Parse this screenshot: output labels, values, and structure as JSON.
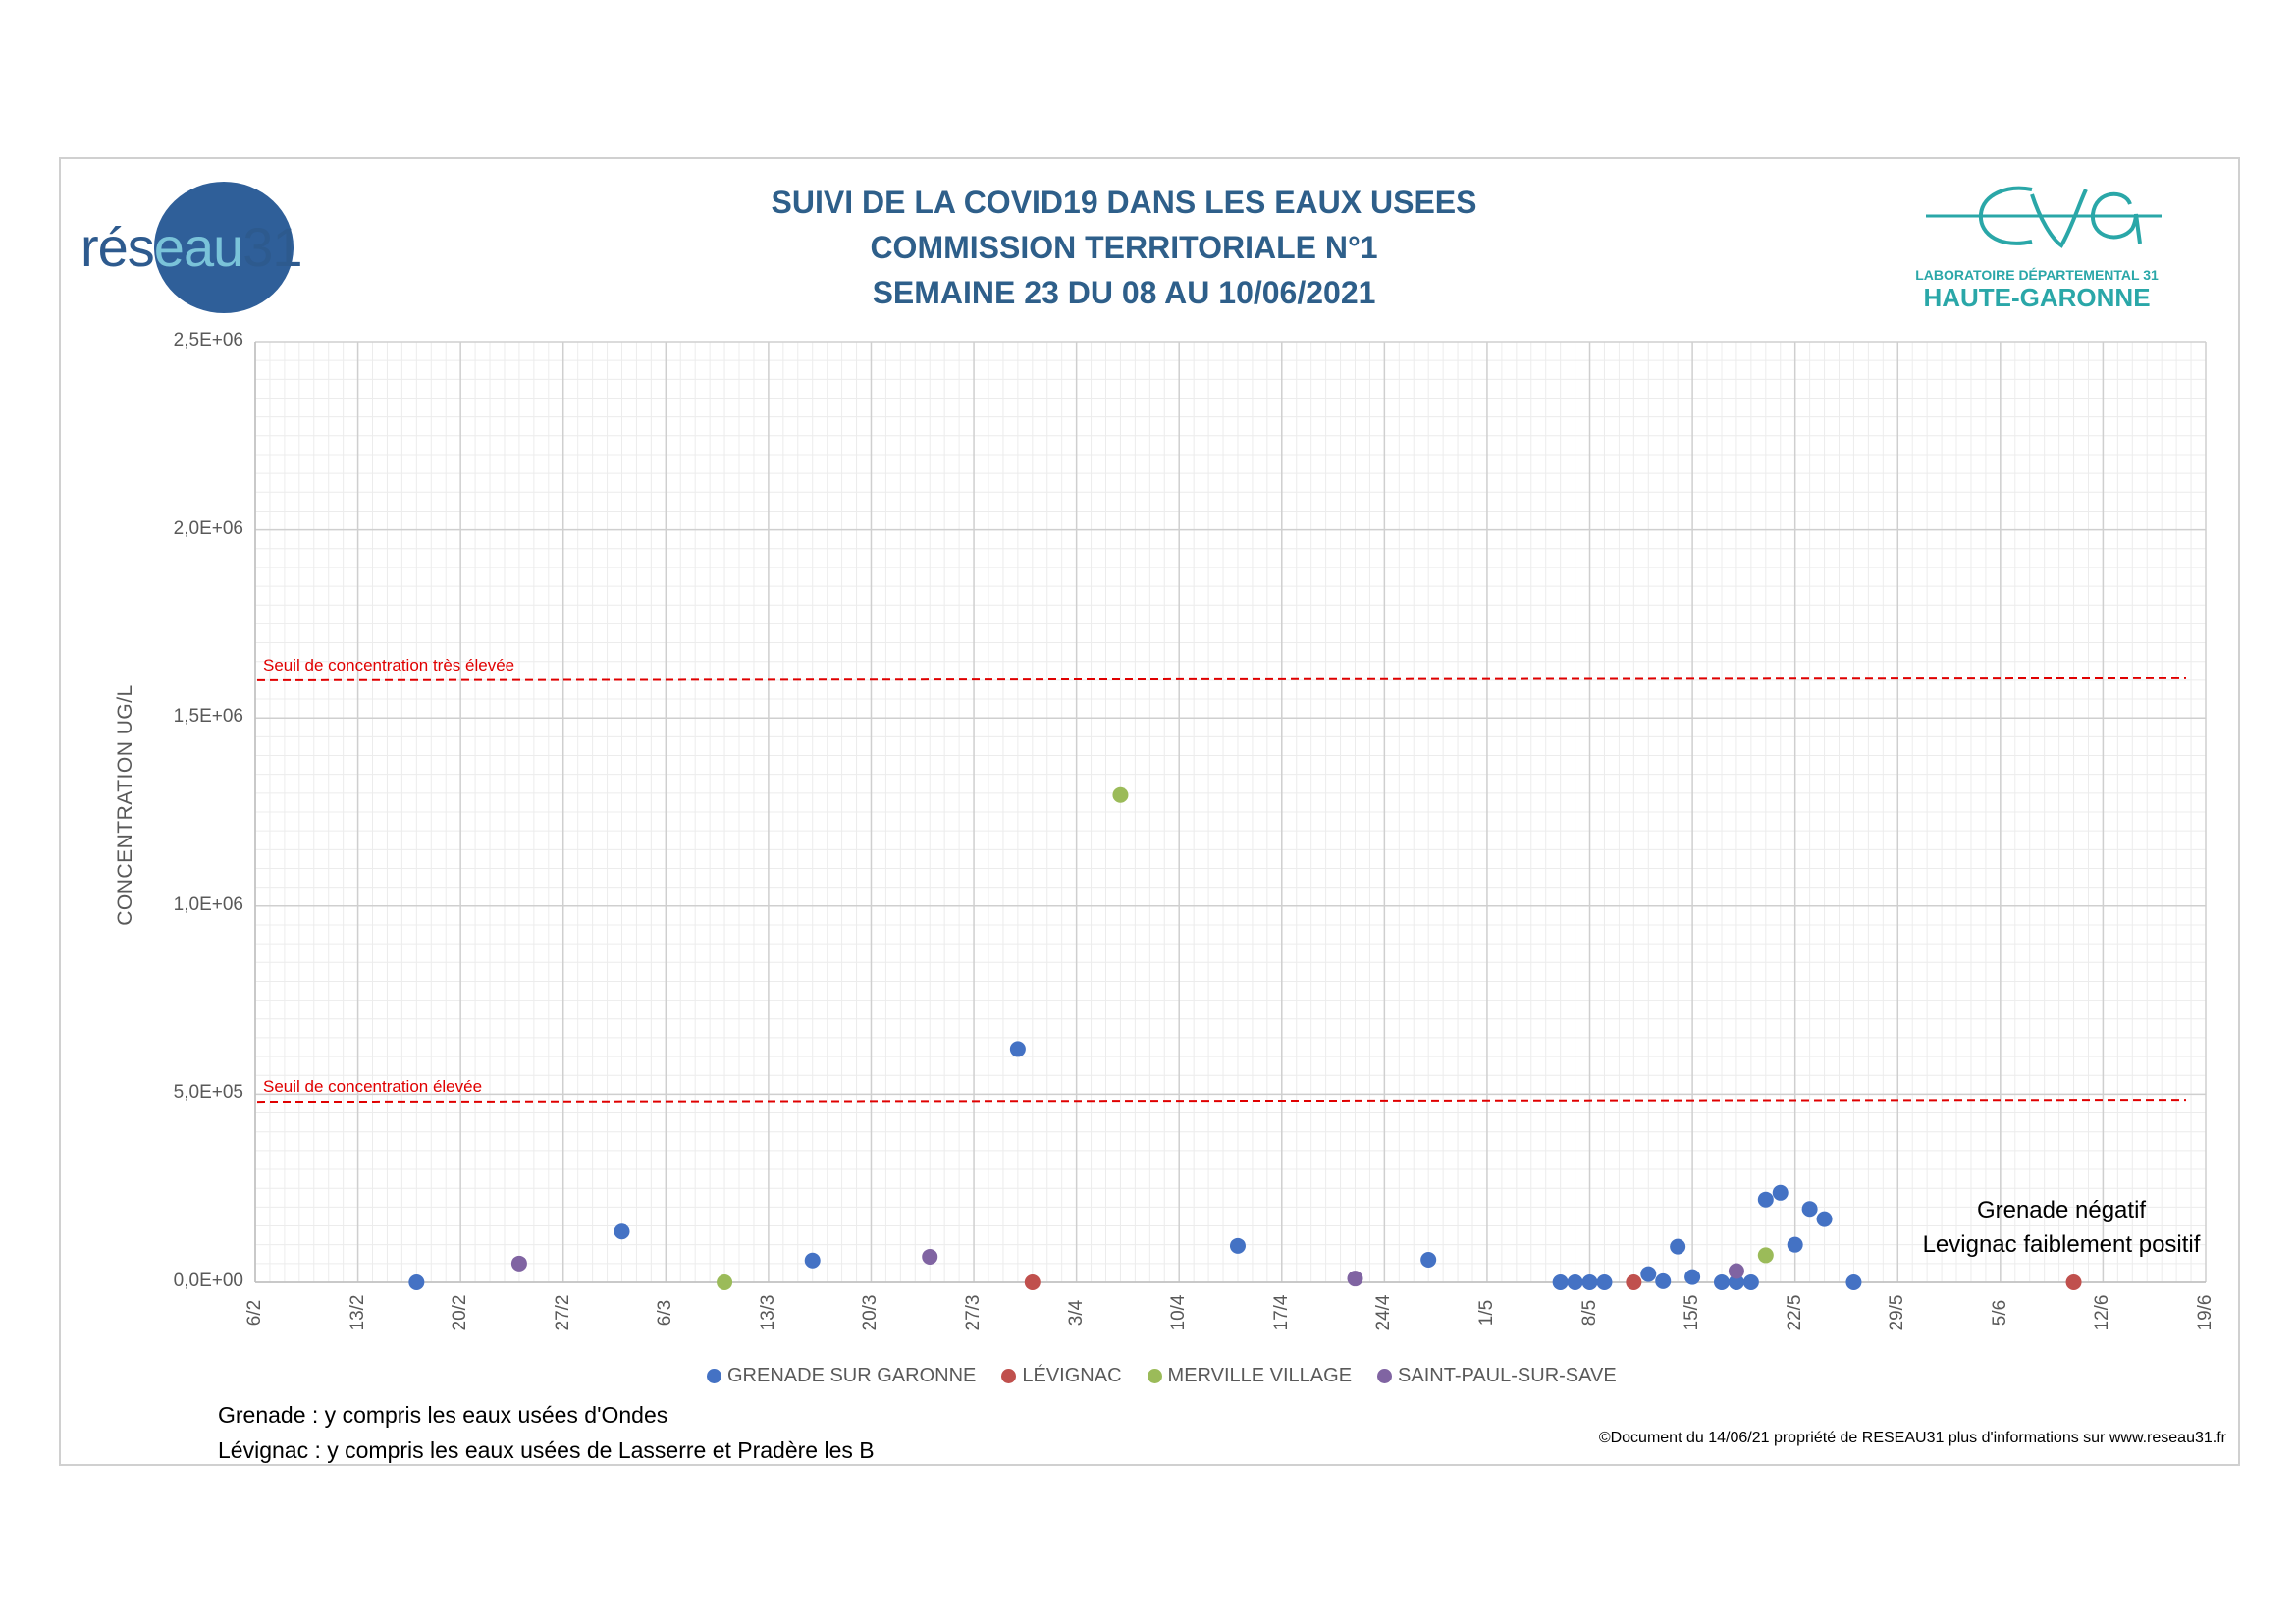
{
  "title": {
    "line1": "SUIVI DE LA COVID19 DANS LES EAUX USEES",
    "line2": "COMMISSION TERRITORIALE N°1",
    "line3": "SEMAINE 23 DU 08 AU 10/06/2021"
  },
  "logo_left": {
    "part1": "rés",
    "part2": "eau",
    "part3": "31"
  },
  "logo_right": {
    "line1": "LABORATOIRE DÉPARTEMENTAL 31",
    "line2": "HAUTE-GARONNE"
  },
  "notes": {
    "grenade": "Grenade : y compris les eaux usées d'Ondes",
    "levignac": "Lévignac : y compris les eaux usées de Lasserre et Pradère les B"
  },
  "copyright": "©Document du 14/06/21 propriété de RESEAU31 plus d'informations sur www.reseau31.fr",
  "annotations": {
    "line1": "Grenade négatif",
    "line2": "Levignac faiblement positif"
  },
  "colors": {
    "grenade": "#4472c4",
    "levignac": "#c0504d",
    "merville": "#9bbb59",
    "saint_paul": "#8064a2",
    "threshold": "#e00000",
    "title": "#2e5f8a"
  },
  "chart_data": {
    "type": "scatter",
    "ylabel": "CONCENTRATION UG/L",
    "xlabel": "",
    "ylim": [
      0,
      2500000
    ],
    "yticks": [
      "0,0E+00",
      "5,0E+05",
      "1,0E+06",
      "1,5E+06",
      "2,0E+06",
      "2,5E+06"
    ],
    "xlim": [
      "2021-02-06",
      "2021-06-19"
    ],
    "xticks": [
      "6/2",
      "13/2",
      "20/2",
      "27/2",
      "6/3",
      "13/3",
      "20/3",
      "27/3",
      "3/4",
      "10/4",
      "17/4",
      "24/4",
      "1/5",
      "8/5",
      "15/5",
      "22/5",
      "29/5",
      "5/6",
      "12/6",
      "19/6"
    ],
    "grid": true,
    "legend_position": "bottom",
    "thresholds": [
      {
        "label": "Seuil de concentration très élevée",
        "value": 1600000
      },
      {
        "label": "Seuil de concentration élevée",
        "value": 480000
      }
    ],
    "series": [
      {
        "name": "GRENADE SUR GARONNE",
        "points": [
          [
            "2021-02-17",
            0
          ],
          [
            "2021-03-03",
            135000
          ],
          [
            "2021-03-16",
            58000
          ],
          [
            "2021-03-30",
            620000
          ],
          [
            "2021-04-14",
            97000
          ],
          [
            "2021-04-27",
            60000
          ],
          [
            "2021-05-06",
            0
          ],
          [
            "2021-05-07",
            0
          ],
          [
            "2021-05-08",
            0
          ],
          [
            "2021-05-09",
            0
          ],
          [
            "2021-05-12",
            22000
          ],
          [
            "2021-05-13",
            3000
          ],
          [
            "2021-05-14",
            95000
          ],
          [
            "2021-05-15",
            14000
          ],
          [
            "2021-05-17",
            0
          ],
          [
            "2021-05-18",
            0
          ],
          [
            "2021-05-19",
            0
          ],
          [
            "2021-05-20",
            220000
          ],
          [
            "2021-05-21",
            238000
          ],
          [
            "2021-05-22",
            100000
          ],
          [
            "2021-05-23",
            195000
          ],
          [
            "2021-05-24",
            168000
          ],
          [
            "2021-05-26",
            0
          ]
        ]
      },
      {
        "name": "LÉVIGNAC",
        "points": [
          [
            "2021-03-31",
            0
          ],
          [
            "2021-05-11",
            0
          ],
          [
            "2021-06-10",
            0
          ]
        ]
      },
      {
        "name": "MERVILLE VILLAGE",
        "points": [
          [
            "2021-03-10",
            0
          ],
          [
            "2021-04-06",
            1295000
          ],
          [
            "2021-05-20",
            72000
          ]
        ]
      },
      {
        "name": "SAINT-PAUL-SUR-SAVE",
        "points": [
          [
            "2021-02-24",
            50000
          ],
          [
            "2021-03-24",
            68000
          ],
          [
            "2021-04-22",
            10000
          ],
          [
            "2021-05-18",
            30000
          ]
        ]
      }
    ]
  }
}
